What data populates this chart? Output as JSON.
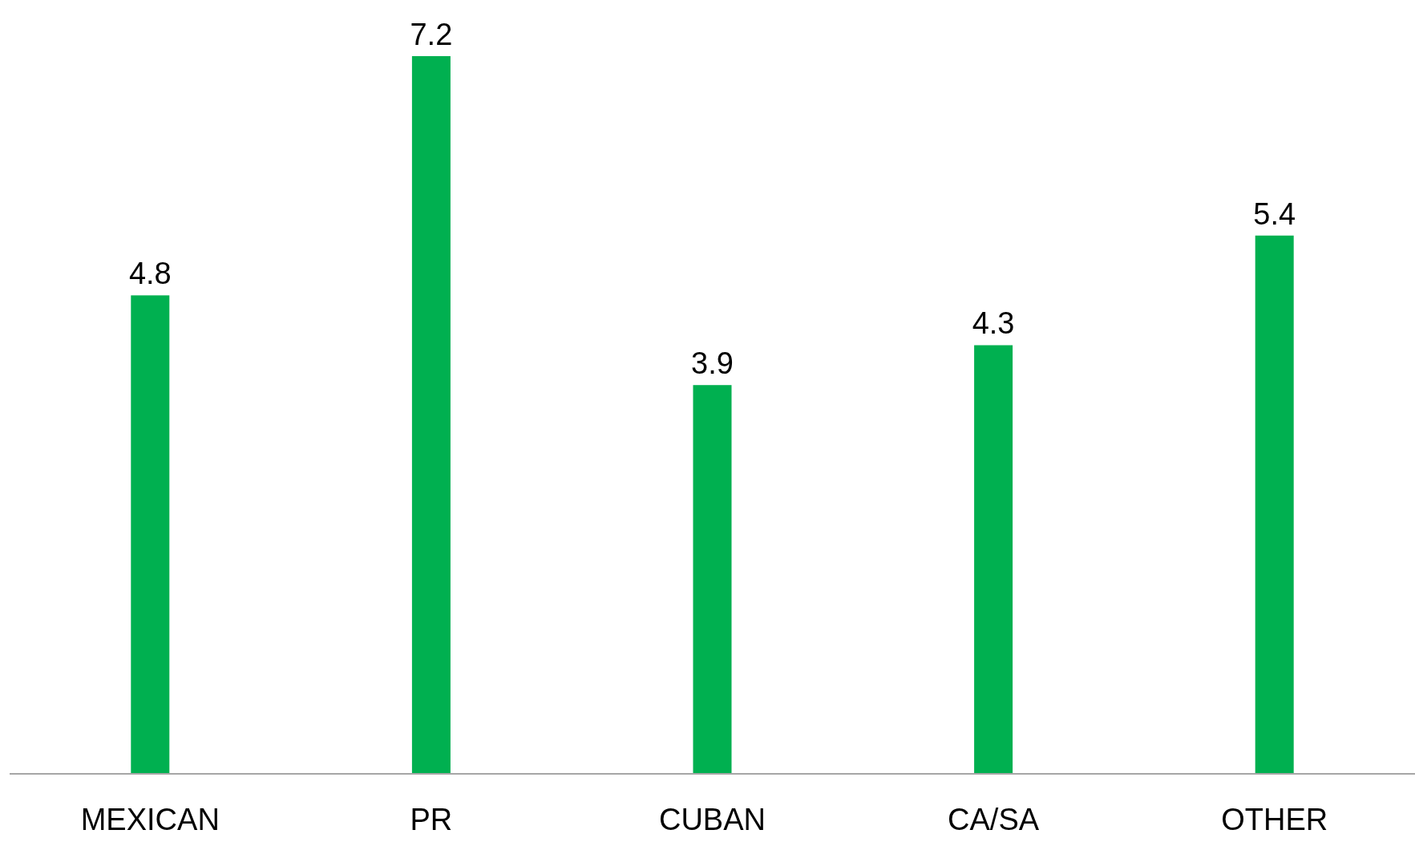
{
  "chart_data": {
    "type": "bar",
    "categories": [
      "MEXICAN",
      "PR",
      "CUBAN",
      "CA/SA",
      "OTHER"
    ],
    "values": [
      4.8,
      7.2,
      3.9,
      4.3,
      5.4
    ],
    "color": "#00b050",
    "data_labels": true
  }
}
